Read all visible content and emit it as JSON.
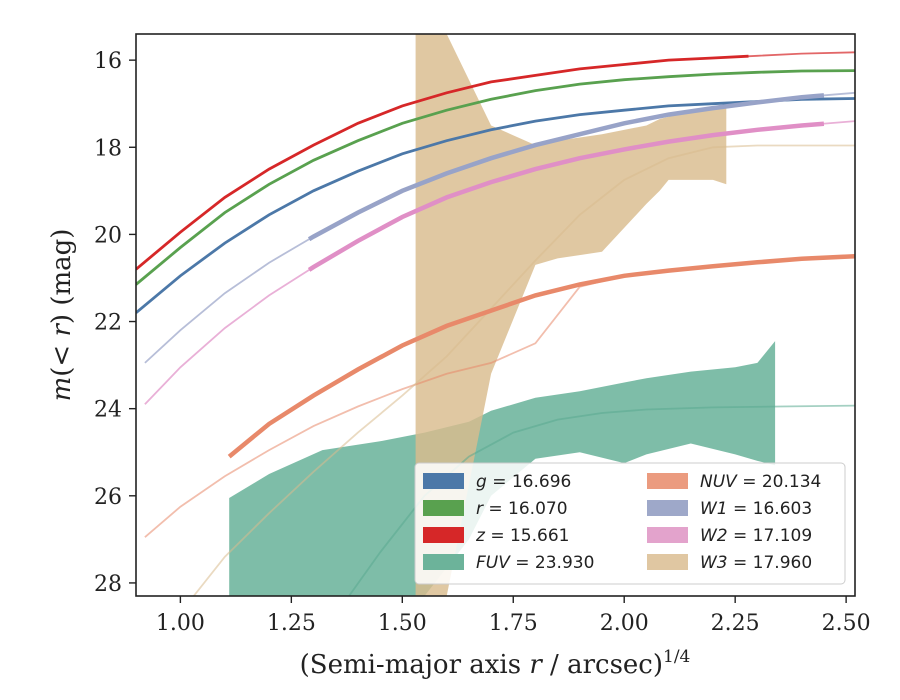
{
  "chart_data": {
    "type": "line",
    "xlabel": "(Semi-major axis r / arcsec)",
    "xlabel_parts": {
      "pre": "(Semi-major axis ",
      "var": "r",
      "post": " / arcsec)",
      "sup": "1/4"
    },
    "ylabel_parts": {
      "pre": "m",
      "inner": "(< ",
      "var": "r",
      "post": ") (mag)"
    },
    "xlim": [
      0.9,
      2.52
    ],
    "ylim": [
      28.3,
      15.4
    ],
    "y_inverted": true,
    "grid": false,
    "legend_position": "lower-right",
    "x_ticks": [
      1.0,
      1.25,
      1.5,
      1.75,
      2.0,
      2.25,
      2.5
    ],
    "x_tick_labels": [
      "1.00",
      "1.25",
      "1.50",
      "1.75",
      "2.00",
      "2.25",
      "2.50"
    ],
    "y_ticks": [
      16,
      18,
      20,
      22,
      24,
      26,
      28
    ],
    "y_tick_labels": [
      "16",
      "18",
      "20",
      "22",
      "24",
      "26",
      "28"
    ],
    "series": [
      {
        "name": "g",
        "value": "16.696",
        "color": "#4c78a8",
        "curve": {
          "x": [
            0.9,
            1.0,
            1.1,
            1.2,
            1.3,
            1.4,
            1.5,
            1.6,
            1.7,
            1.8,
            1.9,
            2.0,
            2.1,
            2.2,
            2.3,
            2.4,
            2.52
          ],
          "y": [
            21.8,
            20.95,
            20.2,
            19.55,
            19.0,
            18.55,
            18.15,
            17.85,
            17.6,
            17.4,
            17.25,
            17.15,
            17.05,
            17.0,
            16.95,
            16.9,
            16.88
          ]
        },
        "measured_x_range": [
          0.9,
          2.52
        ]
      },
      {
        "name": "r",
        "value": "16.070",
        "color": "#59a14f",
        "curve": {
          "x": [
            0.9,
            1.0,
            1.1,
            1.2,
            1.3,
            1.4,
            1.5,
            1.6,
            1.7,
            1.8,
            1.9,
            2.0,
            2.1,
            2.2,
            2.3,
            2.4,
            2.52
          ],
          "y": [
            21.15,
            20.3,
            19.5,
            18.85,
            18.3,
            17.85,
            17.45,
            17.15,
            16.9,
            16.7,
            16.55,
            16.45,
            16.38,
            16.32,
            16.28,
            16.25,
            16.24
          ]
        },
        "measured_x_range": [
          0.9,
          2.52
        ]
      },
      {
        "name": "z",
        "value": "15.661",
        "color": "#d62728",
        "curve": {
          "x": [
            0.9,
            1.0,
            1.1,
            1.2,
            1.3,
            1.4,
            1.5,
            1.6,
            1.7,
            1.8,
            1.9,
            2.0,
            2.1,
            2.2,
            2.3,
            2.4,
            2.52
          ],
          "y": [
            20.8,
            19.95,
            19.15,
            18.5,
            17.95,
            17.45,
            17.05,
            16.75,
            16.5,
            16.35,
            16.2,
            16.1,
            16.0,
            15.95,
            15.9,
            15.85,
            15.82
          ]
        },
        "measured_x_range": [
          0.9,
          2.28
        ]
      },
      {
        "name": "FUV",
        "value": "23.930",
        "color": "#5aaa90",
        "curve": {
          "x": [
            1.38,
            1.45,
            1.55,
            1.65,
            1.75,
            1.85,
            1.95,
            2.05,
            2.2,
            2.35,
            2.52
          ],
          "y": [
            28.3,
            27.3,
            26.0,
            25.1,
            24.55,
            24.25,
            24.1,
            24.02,
            23.97,
            23.95,
            23.93
          ]
        },
        "band_x": [
          1.11,
          1.2,
          1.32,
          1.45,
          1.55,
          1.65,
          1.7,
          1.8,
          1.9,
          2.0,
          2.05,
          2.15,
          2.25,
          2.3,
          2.34
        ],
        "band_upper": [
          26.05,
          25.5,
          24.95,
          24.75,
          24.55,
          24.3,
          24.05,
          23.75,
          23.6,
          23.4,
          23.3,
          23.15,
          23.05,
          22.95,
          22.45
        ],
        "band_lower": [
          28.3,
          28.3,
          28.3,
          28.3,
          28.3,
          27.0,
          26.0,
          25.15,
          25.0,
          25.25,
          25.05,
          24.8,
          25.05,
          25.2,
          25.3
        ]
      },
      {
        "name": "NUV",
        "value": "20.134",
        "color": "#e8896a",
        "curve": {
          "x": [
            0.92,
            1.0,
            1.1,
            1.2,
            1.3,
            1.4,
            1.5,
            1.6,
            1.7,
            1.8,
            1.9,
            2.0,
            2.1,
            2.2,
            2.3,
            2.4,
            2.52
          ],
          "y": [
            26.95,
            26.25,
            25.55,
            24.95,
            24.4,
            23.95,
            23.55,
            23.2,
            22.95,
            22.5,
            21.2,
            20.95,
            20.85,
            20.75,
            20.65,
            20.57,
            20.5
          ]
        },
        "measured_curve": {
          "x": [
            1.11,
            1.2,
            1.3,
            1.4,
            1.5,
            1.6,
            1.7,
            1.8,
            1.9,
            2.0,
            2.1,
            2.2,
            2.3,
            2.4,
            2.52
          ],
          "y": [
            25.1,
            24.35,
            23.7,
            23.1,
            22.55,
            22.1,
            21.75,
            21.4,
            21.15,
            20.95,
            20.83,
            20.73,
            20.64,
            20.56,
            20.5
          ]
        }
      },
      {
        "name": "W1",
        "value": "16.603",
        "color": "#98a3c8",
        "curve": {
          "x": [
            0.92,
            1.0,
            1.1,
            1.2,
            1.3,
            1.4,
            1.5,
            1.6,
            1.7,
            1.8,
            1.9,
            2.0,
            2.1,
            2.2,
            2.3,
            2.4,
            2.52
          ],
          "y": [
            22.95,
            22.2,
            21.35,
            20.65,
            20.05,
            19.5,
            19.0,
            18.6,
            18.25,
            17.95,
            17.7,
            17.45,
            17.25,
            17.1,
            16.97,
            16.85,
            16.75
          ]
        },
        "measured_x_range": [
          1.29,
          2.45
        ]
      },
      {
        "name": "W2",
        "value": "17.109",
        "color": "#e08fc6",
        "curve": {
          "x": [
            0.92,
            1.0,
            1.1,
            1.2,
            1.3,
            1.4,
            1.5,
            1.6,
            1.7,
            1.8,
            1.9,
            2.0,
            2.1,
            2.2,
            2.3,
            2.4,
            2.52
          ],
          "y": [
            23.9,
            23.05,
            22.15,
            21.4,
            20.75,
            20.15,
            19.6,
            19.15,
            18.8,
            18.5,
            18.25,
            18.05,
            17.87,
            17.72,
            17.6,
            17.5,
            17.4
          ]
        },
        "measured_x_range": [
          1.29,
          2.45
        ]
      },
      {
        "name": "W3",
        "value": "17.960",
        "color": "#d9bc8e",
        "curve": {
          "x": [
            1.03,
            1.1,
            1.2,
            1.3,
            1.4,
            1.5,
            1.6,
            1.7,
            1.8,
            1.9,
            2.0,
            2.1,
            2.2,
            2.3,
            2.4,
            2.52
          ],
          "y": [
            28.3,
            27.4,
            26.4,
            25.45,
            24.55,
            23.7,
            22.8,
            21.7,
            20.6,
            19.55,
            18.75,
            18.25,
            18.0,
            17.96,
            17.96,
            17.96
          ]
        },
        "band_x": [
          1.53,
          1.55,
          1.6,
          1.7,
          1.8,
          1.85,
          1.95,
          2.05,
          2.08,
          2.1,
          2.15,
          2.2,
          2.23
        ],
        "band_upper": [
          15.4,
          15.4,
          15.4,
          17.5,
          17.95,
          17.85,
          17.7,
          17.5,
          17.35,
          17.3,
          17.15,
          17.1,
          17.05
        ],
        "band_lower": [
          28.3,
          28.3,
          28.3,
          23.2,
          20.7,
          20.55,
          20.4,
          19.3,
          19.0,
          18.75,
          18.75,
          18.75,
          18.85
        ]
      }
    ],
    "legend": {
      "columns": [
        [
          {
            "key": "g",
            "var": "g",
            "text": " = 16.696",
            "color": "#4c78a8"
          },
          {
            "key": "r",
            "var": "r",
            "text": " = 16.070",
            "color": "#59a14f"
          },
          {
            "key": "z",
            "var": "z",
            "text": " = 15.661",
            "color": "#d62728"
          },
          {
            "key": "FUV",
            "var": "FUV",
            "text": " = 23.930",
            "color": "#6cb39a"
          }
        ],
        [
          {
            "key": "NUV",
            "var": "NUV",
            "text": " = 20.134",
            "color": "#eb9b7f"
          },
          {
            "key": "W1",
            "var": "W1",
            "text": " = 16.603",
            "color": "#9ea8c9"
          },
          {
            "key": "W2",
            "var": "W2",
            "text": " = 17.109",
            "color": "#e3a3cc"
          },
          {
            "key": "W3",
            "var": "W3",
            "text": " = 17.960",
            "color": "#e0c7a2"
          }
        ]
      ]
    }
  }
}
